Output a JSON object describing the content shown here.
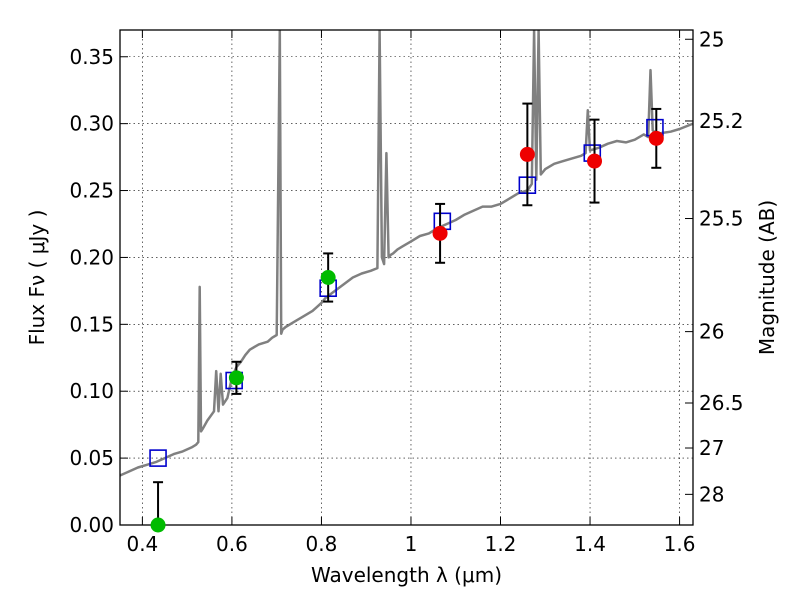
{
  "chart_data": {
    "type": "line",
    "xlabel": "Wavelength  λ (μm)",
    "ylabel": "Flux  Fν  ( μJy )",
    "y2label": "Magnitude (AB)",
    "xlim": [
      0.35,
      1.63
    ],
    "ylim": [
      0.0,
      0.37
    ],
    "grid": true,
    "x_ticks": [
      {
        "value": 0.4,
        "label": "0.4"
      },
      {
        "value": 0.6,
        "label": "0.6"
      },
      {
        "value": 0.8,
        "label": "0.8"
      },
      {
        "value": 1.0,
        "label": "1"
      },
      {
        "value": 1.2,
        "label": "1.2"
      },
      {
        "value": 1.4,
        "label": "1.4"
      },
      {
        "value": 1.6,
        "label": "1.6"
      }
    ],
    "y_ticks": [
      {
        "value": 0.0,
        "label": "0.00"
      },
      {
        "value": 0.05,
        "label": "0.05"
      },
      {
        "value": 0.1,
        "label": "0.10"
      },
      {
        "value": 0.15,
        "label": "0.15"
      },
      {
        "value": 0.2,
        "label": "0.20"
      },
      {
        "value": 0.25,
        "label": "0.25"
      },
      {
        "value": 0.3,
        "label": "0.30"
      },
      {
        "value": 0.35,
        "label": "0.35"
      }
    ],
    "y2_ticks": [
      {
        "mag": 25.0,
        "label": "25"
      },
      {
        "mag": 25.2,
        "label": "25.2"
      },
      {
        "mag": 25.5,
        "label": "25.5"
      },
      {
        "mag": 26.0,
        "label": "26"
      },
      {
        "mag": 26.5,
        "label": "26.5"
      },
      {
        "mag": 27.0,
        "label": "27"
      },
      {
        "mag": 28.0,
        "label": "28"
      }
    ],
    "series": [
      {
        "kind": "line",
        "color": "#808080",
        "x": [
          0.35,
          0.37,
          0.39,
          0.41,
          0.43,
          0.45,
          0.47,
          0.49,
          0.51,
          0.52,
          0.525,
          0.528,
          0.531,
          0.535,
          0.545,
          0.56,
          0.565,
          0.57,
          0.575,
          0.58,
          0.59,
          0.6,
          0.61,
          0.62,
          0.63,
          0.64,
          0.66,
          0.68,
          0.69,
          0.7,
          0.707,
          0.71,
          0.713,
          0.72,
          0.74,
          0.76,
          0.78,
          0.79,
          0.8,
          0.81,
          0.83,
          0.85,
          0.87,
          0.89,
          0.91,
          0.925,
          0.93,
          0.935,
          0.94,
          0.945,
          0.95,
          0.955,
          0.96,
          0.97,
          0.98,
          1.0,
          1.02,
          1.04,
          1.06,
          1.08,
          1.1,
          1.12,
          1.14,
          1.16,
          1.18,
          1.2,
          1.22,
          1.24,
          1.26,
          1.27,
          1.275,
          1.28,
          1.285,
          1.29,
          1.3,
          1.32,
          1.34,
          1.36,
          1.38,
          1.39,
          1.395,
          1.4,
          1.42,
          1.44,
          1.46,
          1.48,
          1.5,
          1.52,
          1.53,
          1.535,
          1.54,
          1.55,
          1.56,
          1.58,
          1.6,
          1.63
        ],
        "y": [
          0.037,
          0.04,
          0.043,
          0.045,
          0.047,
          0.05,
          0.053,
          0.055,
          0.058,
          0.06,
          0.062,
          0.178,
          0.07,
          0.072,
          0.078,
          0.085,
          0.115,
          0.085,
          0.113,
          0.09,
          0.095,
          0.11,
          0.118,
          0.122,
          0.127,
          0.131,
          0.135,
          0.137,
          0.14,
          0.142,
          0.37,
          0.143,
          0.146,
          0.148,
          0.152,
          0.156,
          0.16,
          0.163,
          0.166,
          0.17,
          0.175,
          0.18,
          0.185,
          0.188,
          0.19,
          0.192,
          0.37,
          0.2,
          0.195,
          0.278,
          0.2,
          0.202,
          0.203,
          0.206,
          0.208,
          0.212,
          0.216,
          0.218,
          0.222,
          0.225,
          0.228,
          0.232,
          0.235,
          0.238,
          0.238,
          0.24,
          0.244,
          0.248,
          0.25,
          0.255,
          0.37,
          0.258,
          0.37,
          0.262,
          0.266,
          0.27,
          0.272,
          0.274,
          0.276,
          0.278,
          0.31,
          0.28,
          0.282,
          0.285,
          0.287,
          0.286,
          0.288,
          0.292,
          0.29,
          0.34,
          0.295,
          0.292,
          0.293,
          0.294,
          0.296,
          0.3
        ]
      },
      {
        "kind": "open-square",
        "color": "#0000cc",
        "x": [
          0.435,
          0.605,
          0.815,
          1.07,
          1.26,
          1.405,
          1.545
        ],
        "y": [
          0.05,
          0.108,
          0.177,
          0.227,
          0.254,
          0.278,
          0.297
        ]
      },
      {
        "kind": "filled-circle",
        "color": "#00bb00",
        "x": [
          0.435,
          0.61,
          0.815
        ],
        "y": [
          0.0,
          0.11,
          0.185
        ],
        "err_low": [
          0.0,
          0.012,
          0.018
        ],
        "err_high": [
          0.032,
          0.012,
          0.018
        ]
      },
      {
        "kind": "filled-circle",
        "color": "#ee0000",
        "x": [
          1.065,
          1.26,
          1.41,
          1.548
        ],
        "y": [
          0.218,
          0.277,
          0.272,
          0.289
        ],
        "err_low": [
          0.022,
          0.038,
          0.031,
          0.022
        ],
        "err_high": [
          0.022,
          0.038,
          0.031,
          0.022
        ]
      }
    ]
  }
}
